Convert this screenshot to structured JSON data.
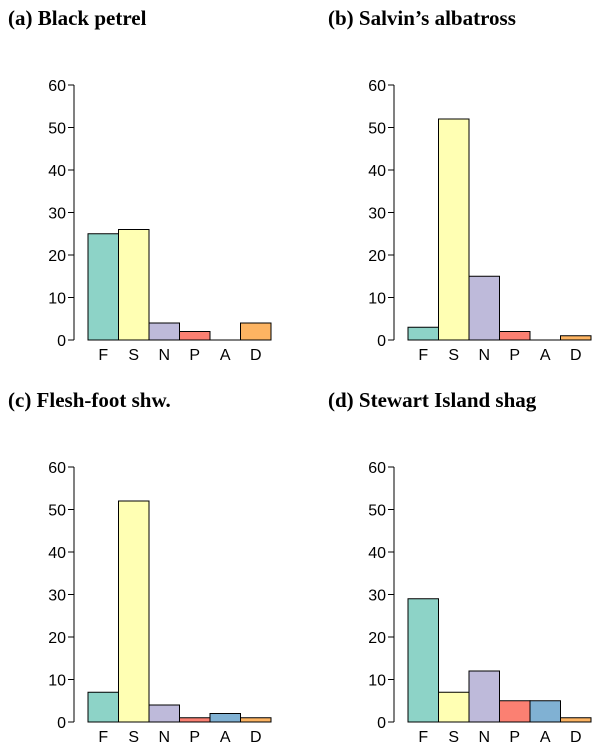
{
  "chart_data": [
    {
      "type": "bar",
      "title": "(a) Black petrel",
      "categories": [
        "F",
        "S",
        "N",
        "P",
        "A",
        "D"
      ],
      "values": [
        25,
        26,
        4,
        2,
        0,
        4
      ],
      "ylim": [
        0,
        60
      ],
      "yticks": [
        0,
        10,
        20,
        30,
        40,
        50,
        60
      ],
      "grid": false
    },
    {
      "type": "bar",
      "title": "(b) Salvin’s albatross",
      "categories": [
        "F",
        "S",
        "N",
        "P",
        "A",
        "D"
      ],
      "values": [
        3,
        52,
        15,
        2,
        0,
        1
      ],
      "ylim": [
        0,
        60
      ],
      "yticks": [
        0,
        10,
        20,
        30,
        40,
        50,
        60
      ],
      "grid": false
    },
    {
      "type": "bar",
      "title": "(c) Flesh-foot shw.",
      "categories": [
        "F",
        "S",
        "N",
        "P",
        "A",
        "D"
      ],
      "values": [
        7,
        52,
        4,
        1,
        2,
        1
      ],
      "ylim": [
        0,
        60
      ],
      "yticks": [
        0,
        10,
        20,
        30,
        40,
        50,
        60
      ],
      "grid": false
    },
    {
      "type": "bar",
      "title": "(d) Stewart Island shag",
      "categories": [
        "F",
        "S",
        "N",
        "P",
        "A",
        "D"
      ],
      "values": [
        29,
        7,
        12,
        5,
        5,
        1
      ],
      "ylim": [
        0,
        60
      ],
      "yticks": [
        0,
        10,
        20,
        30,
        40,
        50,
        60
      ],
      "grid": false
    }
  ],
  "colors": {
    "F": "#8dd3c7",
    "S": "#ffffb3",
    "N": "#bebada",
    "P": "#fb8072",
    "A": "#80b1d3",
    "D": "#fdb462"
  }
}
